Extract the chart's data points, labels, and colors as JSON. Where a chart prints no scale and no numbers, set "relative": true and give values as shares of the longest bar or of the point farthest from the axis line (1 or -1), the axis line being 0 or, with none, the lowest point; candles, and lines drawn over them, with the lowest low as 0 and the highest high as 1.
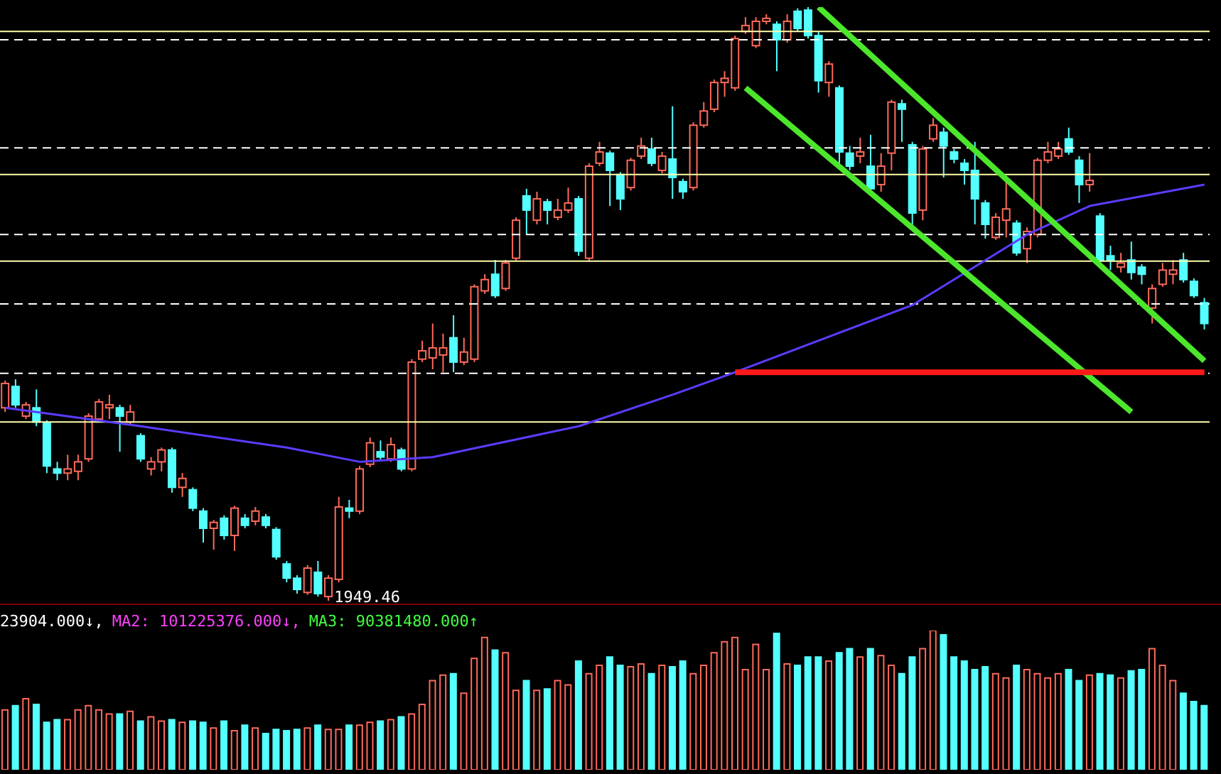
{
  "chart_data": [
    {
      "type": "candlestick",
      "relative": true,
      "colors": [
        "#ff6a5a",
        "#54ffff",
        "#ff6a5a",
        "#54ffff",
        "#54ffff",
        "#54ffff",
        "#ff6a5a",
        "#ff6a5a",
        "#ff6a5a",
        "#ff6a5a",
        "#ff6a5a",
        "#54ffff",
        "#ff6a5a",
        "#54ffff",
        "#ff6a5a",
        "#ff6a5a",
        "#54ffff",
        "#ff6a5a",
        "#54ffff",
        "#54ffff",
        "#ff6a5a",
        "#54ffff",
        "#ff6a5a",
        "#54ffff",
        "#ff6a5a",
        "#54ffff",
        "#54ffff",
        "#54ffff",
        "#54ffff",
        "#ff6a5a",
        "#54ffff",
        "#ff6a5a",
        "#ff6a5a",
        "#54ffff",
        "#ff6a5a",
        "#ff6a5a",
        "#54ffff",
        "#ff6a5a",
        "#54ffff",
        "#ff6a5a",
        "#ff6a5a",
        "#ff6a5a",
        "#ff6a5a",
        "#54ffff",
        "#ff6a5a",
        "#ff6a5a",
        "#ff6a5a",
        "#54ffff",
        "#ff6a5a",
        "#ff6a5a",
        "#54ffff",
        "#ff6a5a",
        "#54ffff",
        "#ff6a5a",
        "#ff6a5a",
        "#54ffff",
        "#ff6a5a",
        "#ff6a5a",
        "#54ffff",
        "#54ffff",
        "#ff6a5a",
        "#ff6a5a",
        "#54ffff",
        "#ff6a5a",
        "#54ffff",
        "#54ffff",
        "#ff6a5a",
        "#ff6a5a",
        "#ff6a5a",
        "#ff6a5a",
        "#ff6a5a",
        "#ff6a5a",
        "#ff6a5a",
        "#ff6a5a",
        "#54ffff",
        "#ff6a5a",
        "#54ffff",
        "#54ffff",
        "#54ffff",
        "#ff6a5a",
        "#54ffff",
        "#54ffff",
        "#ff6a5a",
        "#54ffff",
        "#ff6a5a",
        "#ff6a5a",
        "#54ffff",
        "#54ffff",
        "#ff6a5a",
        "#ff6a5a",
        "#54ffff",
        "#54ffff",
        "#54ffff",
        "#54ffff",
        "#54ffff",
        "#ff6a5a",
        "#ff6a5a",
        "#54ffff",
        "#ff6a5a",
        "#ff6a5a",
        "#ff6a5a",
        "#ff6a5a",
        "#54ffff",
        "#54ffff",
        "#ff6a5a",
        "#54ffff",
        "#54ffff",
        "#ff6a5a",
        "#54ffff",
        "#54ffff",
        "#ff6a5a",
        "#ff6a5a",
        "#ff6a5a",
        "#54ffff",
        "#54ffff",
        "#54ffff"
      ],
      "categories": [
        null,
        null,
        null,
        null,
        null,
        null,
        null,
        null,
        null,
        null,
        null,
        null,
        null,
        null,
        null,
        null,
        null,
        null,
        null,
        null,
        null,
        null,
        null,
        null,
        null,
        null,
        null,
        null,
        null,
        null,
        null,
        null,
        null,
        null,
        null,
        null,
        null,
        null,
        null,
        null,
        null,
        null,
        null,
        null,
        null,
        null,
        null,
        null,
        null,
        null,
        null,
        null,
        null,
        null,
        null,
        null,
        null,
        null,
        null,
        null,
        null,
        null,
        null,
        null,
        null,
        null,
        null,
        null,
        null,
        null,
        null,
        null,
        null,
        null,
        null,
        null,
        null,
        null,
        null,
        null,
        null,
        null,
        null,
        null,
        null,
        null,
        null,
        null,
        null,
        null,
        null,
        null,
        null,
        null,
        null,
        null,
        null,
        null,
        null,
        null,
        null,
        null,
        null,
        null,
        null,
        null,
        null,
        null,
        null,
        null,
        null,
        null,
        null,
        null,
        null,
        null
      ],
      "ohlc": [
        [
          0.325,
          0.371,
          0.318,
          0.366
        ],
        [
          0.361,
          0.373,
          0.325,
          0.33
        ],
        [
          0.311,
          0.335,
          0.306,
          0.33
        ],
        [
          0.325,
          0.356,
          0.294,
          0.301
        ],
        [
          0.299,
          0.304,
          0.215,
          0.227
        ],
        [
          0.222,
          0.234,
          0.203,
          0.215
        ],
        [
          0.215,
          0.246,
          0.203,
          0.222
        ],
        [
          0.218,
          0.246,
          0.203,
          0.234
        ],
        [
          0.239,
          0.316,
          0.234,
          0.311
        ],
        [
          0.306,
          0.34,
          0.301,
          0.335
        ],
        [
          0.325,
          0.347,
          0.306,
          0.33
        ],
        [
          0.325,
          0.33,
          0.251,
          0.311
        ],
        [
          0.301,
          0.33,
          0.297,
          0.318
        ],
        [
          0.278,
          0.282,
          0.234,
          0.239
        ],
        [
          0.222,
          0.242,
          0.211,
          0.234
        ],
        [
          0.234,
          0.258,
          0.218,
          0.254
        ],
        [
          0.254,
          0.258,
          0.182,
          0.191
        ],
        [
          0.191,
          0.215,
          0.175,
          0.206
        ],
        [
          0.187,
          0.191,
          0.151,
          0.156
        ],
        [
          0.151,
          0.156,
          0.098,
          0.122
        ],
        [
          0.122,
          0.136,
          0.086,
          0.132
        ],
        [
          0.139,
          0.144,
          0.103,
          0.11
        ],
        [
          0.11,
          0.16,
          0.084,
          0.156
        ],
        [
          0.139,
          0.146,
          0.122,
          0.127
        ],
        [
          0.134,
          0.158,
          0.127,
          0.151
        ],
        [
          0.141,
          0.146,
          0.122,
          0.127
        ],
        [
          0.12,
          0.124,
          0.069,
          0.074
        ],
        [
          0.062,
          0.067,
          0.031,
          0.038
        ],
        [
          0.038,
          0.043,
          0.012,
          0.019
        ],
        [
          0.014,
          0.06,
          0.01,
          0.055
        ],
        [
          0.048,
          0.067,
          0.007,
          0.012
        ],
        [
          0.007,
          0.043,
          0,
          0.038
        ],
        [
          0.036,
          0.175,
          0.031,
          0.158
        ],
        [
          0.156,
          0.17,
          0.139,
          0.151
        ],
        [
          0.151,
          0.227,
          0.146,
          0.222
        ],
        [
          0.23,
          0.275,
          0.225,
          0.266
        ],
        [
          0.251,
          0.27,
          0.237,
          0.242
        ],
        [
          0.239,
          0.275,
          0.234,
          0.263
        ],
        [
          0.254,
          0.258,
          0.218,
          0.222
        ],
        [
          0.222,
          0.407,
          0.218,
          0.402
        ],
        [
          0.407,
          0.438,
          0.402,
          0.421
        ],
        [
          0.409,
          0.467,
          0.39,
          0.426
        ],
        [
          0.414,
          0.45,
          0.385,
          0.426
        ],
        [
          0.443,
          0.481,
          0.385,
          0.402
        ],
        [
          0.402,
          0.443,
          0.397,
          0.419
        ],
        [
          0.407,
          0.533,
          0.402,
          0.529
        ],
        [
          0.522,
          0.55,
          0.517,
          0.541
        ],
        [
          0.55,
          0.574,
          0.51,
          0.514
        ],
        [
          0.526,
          0.574,
          0.522,
          0.569
        ],
        [
          0.577,
          0.646,
          0.572,
          0.641
        ],
        [
          0.682,
          0.694,
          0.617,
          0.658
        ],
        [
          0.641,
          0.689,
          0.634,
          0.677
        ],
        [
          0.672,
          0.677,
          0.634,
          0.658
        ],
        [
          0.646,
          0.677,
          0.641,
          0.658
        ],
        [
          0.658,
          0.696,
          0.653,
          0.67
        ],
        [
          0.677,
          0.682,
          0.581,
          0.589
        ],
        [
          0.577,
          0.737,
          0.572,
          0.732
        ],
        [
          0.737,
          0.773,
          0.732,
          0.756
        ],
        [
          0.754,
          0.758,
          0.665,
          0.725
        ],
        [
          0.718,
          0.722,
          0.658,
          0.677
        ],
        [
          0.696,
          0.746,
          0.691,
          0.742
        ],
        [
          0.749,
          0.78,
          0.744,
          0.766
        ],
        [
          0.761,
          0.78,
          0.732,
          0.737
        ],
        [
          0.725,
          0.756,
          0.72,
          0.749
        ],
        [
          0.744,
          0.833,
          0.677,
          0.713
        ],
        [
          0.706,
          0.711,
          0.677,
          0.689
        ],
        [
          0.696,
          0.806,
          0.691,
          0.801
        ],
        [
          0.801,
          0.84,
          0.797,
          0.825
        ],
        [
          0.828,
          0.878,
          0.823,
          0.873
        ],
        [
          0.873,
          0.892,
          0.849,
          0.88
        ],
        [
          0.864,
          0.952,
          0.859,
          0.947
        ],
        [
          0.959,
          0.983,
          0.955,
          0.969
        ],
        [
          0.935,
          0.983,
          0.931,
          0.976
        ],
        [
          0.976,
          0.988,
          0.971,
          0.981
        ],
        [
          0.971,
          0.976,
          0.892,
          0.945
        ],
        [
          0.945,
          0.988,
          0.94,
          0.976
        ],
        [
          0.993,
          0.998,
          0.959,
          0.964
        ],
        [
          0.995,
          1,
          0.947,
          0.952
        ],
        [
          0.952,
          0.959,
          0.856,
          0.876
        ],
        [
          0.873,
          0.909,
          0.849,
          0.904
        ],
        [
          0.864,
          0.868,
          0.737,
          0.756
        ],
        [
          0.754,
          0.766,
          0.725,
          0.732
        ],
        [
          0.749,
          0.78,
          0.737,
          0.756
        ],
        [
          0.732,
          0.785,
          0.689,
          0.694
        ],
        [
          0.701,
          0.754,
          0.689,
          0.732
        ],
        [
          0.754,
          0.844,
          0.725,
          0.84
        ],
        [
          0.837,
          0.844,
          0.773,
          0.828
        ],
        [
          0.768,
          0.773,
          0.629,
          0.653
        ],
        [
          0.658,
          0.766,
          0.641,
          0.761
        ],
        [
          0.778,
          0.813,
          0.773,
          0.801
        ],
        [
          0.789,
          0.797,
          0.713,
          0.766
        ],
        [
          0.756,
          0.761,
          0.737,
          0.744
        ],
        [
          0.737,
          0.744,
          0.701,
          0.725
        ],
        [
          0.725,
          0.773,
          0.634,
          0.677
        ],
        [
          0.67,
          0.675,
          0.61,
          0.634
        ],
        [
          0.612,
          0.653,
          0.608,
          0.646
        ],
        [
          0.641,
          0.708,
          0.612,
          0.66
        ],
        [
          0.636,
          0.641,
          0.581,
          0.586
        ],
        [
          0.593,
          0.629,
          0.569,
          0.622
        ],
        [
          0.617,
          0.746,
          0.612,
          0.742
        ],
        [
          0.742,
          0.773,
          0.737,
          0.756
        ],
        [
          0.749,
          0.773,
          0.744,
          0.761
        ],
        [
          0.778,
          0.797,
          0.751,
          0.756
        ],
        [
          0.742,
          0.749,
          0.67,
          0.701
        ],
        [
          0.701,
          0.754,
          0.689,
          0.708
        ],
        [
          0.648,
          0.653,
          0.569,
          0.574
        ],
        [
          0.581,
          0.598,
          0.557,
          0.574
        ],
        [
          0.562,
          0.586,
          0.553,
          0.569
        ],
        [
          0.574,
          0.605,
          0.541,
          0.553
        ],
        [
          0.562,
          0.567,
          0.533,
          0.55
        ],
        [
          0.493,
          0.533,
          0.467,
          0.526
        ],
        [
          0.533,
          0.569,
          0.529,
          0.557
        ],
        [
          0.55,
          0.574,
          0.533,
          0.557
        ],
        [
          0.574,
          0.586,
          0.536,
          0.541
        ],
        [
          0.538,
          0.543,
          0.51,
          0.514
        ],
        [
          0.502,
          0.51,
          0.457,
          0.467
        ]
      ],
      "series": [
        {
          "type": "line",
          "color": "#5a3cff",
          "values": [
            0.325,
            null,
            null,
            null,
            null,
            null,
            null,
            null,
            null,
            null,
            null,
            null,
            null,
            0.294,
            null,
            null,
            null,
            null,
            null,
            null,
            null,
            null,
            null,
            null,
            null,
            null,
            null,
            0.258,
            null,
            null,
            null,
            null,
            null,
            null,
            0.234,
            null,
            null,
            null,
            null,
            null,
            null,
            0.242,
            null,
            null,
            null,
            null,
            null,
            null,
            null,
            null,
            null,
            null,
            null,
            null,
            null,
            0.294,
            null,
            null,
            null,
            null,
            null,
            null,
            null,
            null,
            0.347,
            null,
            null,
            null,
            null,
            null,
            0.385,
            null,
            null,
            null,
            null,
            null,
            null,
            null,
            null,
            null,
            null,
            null,
            null,
            null,
            null,
            null,
            null,
            0.498,
            null,
            null,
            null,
            null,
            null,
            null,
            null,
            null,
            null,
            null,
            0.617,
            null,
            null,
            null,
            null,
            null,
            0.665,
            null,
            null,
            null,
            null,
            null,
            null,
            null,
            null,
            null,
            null,
            0.701
          ]
        },
        {
          "type": "line",
          "color": "#4ce62c",
          "values": [
            null,
            null,
            null,
            null,
            null,
            null,
            null,
            null,
            null,
            null,
            null,
            null,
            null,
            null,
            null,
            null,
            null,
            null,
            null,
            null,
            null,
            null,
            null,
            null,
            null,
            null,
            null,
            null,
            null,
            null,
            null,
            null,
            null,
            null,
            null,
            null,
            null,
            null,
            null,
            null,
            null,
            null,
            null,
            null,
            null,
            null,
            null,
            null,
            null,
            null,
            null,
            null,
            null,
            null,
            null,
            null,
            null,
            null,
            null,
            null,
            null,
            null,
            null,
            null,
            null,
            null,
            null,
            null,
            null,
            null,
            null,
            null,
            null,
            null,
            null,
            null,
            null,
            null,
            1,
            null,
            null,
            null,
            null,
            null,
            null,
            null,
            null,
            null,
            null,
            null,
            null,
            null,
            null,
            null,
            null,
            null,
            null,
            null,
            null,
            null,
            null,
            null,
            null,
            null,
            null,
            null,
            null,
            null,
            null,
            null,
            null,
            null,
            null,
            null,
            null,
            0.404
          ]
        },
        {
          "type": "line",
          "color": "#4ce62c",
          "values": [
            null,
            null,
            null,
            null,
            null,
            null,
            null,
            null,
            null,
            null,
            null,
            null,
            null,
            null,
            null,
            null,
            null,
            null,
            null,
            null,
            null,
            null,
            null,
            null,
            null,
            null,
            null,
            null,
            null,
            null,
            null,
            null,
            null,
            null,
            null,
            null,
            null,
            null,
            null,
            null,
            null,
            null,
            null,
            null,
            null,
            null,
            null,
            null,
            null,
            null,
            null,
            null,
            null,
            null,
            null,
            null,
            null,
            null,
            null,
            null,
            null,
            null,
            null,
            null,
            null,
            null,
            null,
            null,
            null,
            null,
            null,
            0.864,
            null,
            null,
            null,
            null,
            null,
            null,
            null,
            null,
            null,
            null,
            null,
            null,
            null,
            null,
            null,
            null,
            null,
            null,
            null,
            null,
            null,
            null,
            null,
            null,
            null,
            null,
            null,
            null,
            null,
            null,
            null,
            null,
            null,
            null,
            null,
            null,
            0.318,
            null,
            null,
            null,
            null,
            null,
            null,
            null
          ]
        },
        {
          "type": "line",
          "color": "#ff1a1a",
          "values": [
            null,
            null,
            null,
            null,
            null,
            null,
            null,
            null,
            null,
            null,
            null,
            null,
            null,
            null,
            null,
            null,
            null,
            null,
            null,
            null,
            null,
            null,
            null,
            null,
            null,
            null,
            null,
            null,
            null,
            null,
            null,
            null,
            null,
            null,
            null,
            null,
            null,
            null,
            null,
            null,
            null,
            null,
            null,
            null,
            null,
            null,
            null,
            null,
            null,
            null,
            null,
            null,
            null,
            null,
            null,
            null,
            null,
            null,
            null,
            null,
            null,
            null,
            null,
            null,
            null,
            null,
            null,
            null,
            null,
            null,
            0.385,
            null,
            null,
            null,
            null,
            null,
            null,
            null,
            null,
            null,
            null,
            null,
            null,
            null,
            null,
            null,
            null,
            null,
            null,
            null,
            null,
            null,
            null,
            null,
            null,
            null,
            null,
            null,
            null,
            null,
            null,
            null,
            null,
            null,
            null,
            null,
            null,
            null,
            null,
            null,
            null,
            null,
            null,
            null,
            null,
            0.385
          ]
        }
      ],
      "ref_lines": [
        {
          "axis": "y",
          "value": 0.945,
          "color": "#ffffff",
          "line_style": "dashed"
        },
        {
          "axis": "y",
          "value": 0.763,
          "color": "#ffffff",
          "line_style": "dashed"
        },
        {
          "axis": "y",
          "value": 0.617,
          "color": "#ffffff",
          "line_style": "dashed"
        },
        {
          "axis": "y",
          "value": 0.5,
          "color": "#ffffff",
          "line_style": "dashed"
        },
        {
          "axis": "y",
          "value": 0.383,
          "color": "#ffffff",
          "line_style": "dashed"
        },
        {
          "axis": "y",
          "value": 0.959,
          "color": "#ffffaa",
          "line_style": "solid"
        },
        {
          "axis": "y",
          "value": 0.718,
          "color": "#ffffaa",
          "line_style": "solid"
        },
        {
          "axis": "y",
          "value": 0.572,
          "color": "#ffffaa",
          "line_style": "solid"
        },
        {
          "axis": "y",
          "value": 0.301,
          "color": "#ffffaa",
          "line_style": "solid"
        }
      ],
      "annotations": [
        "1949.46"
      ]
    },
    {
      "type": "bar",
      "relative": true,
      "colors": [
        "#ff6a5a",
        "#54ffff",
        "#ff6a5a",
        "#54ffff",
        "#54ffff",
        "#54ffff",
        "#ff6a5a",
        "#ff6a5a",
        "#ff6a5a",
        "#ff6a5a",
        "#ff6a5a",
        "#54ffff",
        "#ff6a5a",
        "#54ffff",
        "#ff6a5a",
        "#ff6a5a",
        "#54ffff",
        "#ff6a5a",
        "#54ffff",
        "#54ffff",
        "#ff6a5a",
        "#54ffff",
        "#ff6a5a",
        "#54ffff",
        "#ff6a5a",
        "#54ffff",
        "#54ffff",
        "#54ffff",
        "#54ffff",
        "#ff6a5a",
        "#54ffff",
        "#ff6a5a",
        "#ff6a5a",
        "#54ffff",
        "#ff6a5a",
        "#ff6a5a",
        "#54ffff",
        "#ff6a5a",
        "#54ffff",
        "#ff6a5a",
        "#ff6a5a",
        "#ff6a5a",
        "#ff6a5a",
        "#54ffff",
        "#ff6a5a",
        "#ff6a5a",
        "#ff6a5a",
        "#54ffff",
        "#ff6a5a",
        "#ff6a5a",
        "#54ffff",
        "#ff6a5a",
        "#54ffff",
        "#ff6a5a",
        "#ff6a5a",
        "#54ffff",
        "#ff6a5a",
        "#ff6a5a",
        "#54ffff",
        "#54ffff",
        "#ff6a5a",
        "#ff6a5a",
        "#54ffff",
        "#ff6a5a",
        "#54ffff",
        "#54ffff",
        "#ff6a5a",
        "#ff6a5a",
        "#ff6a5a",
        "#ff6a5a",
        "#ff6a5a",
        "#ff6a5a",
        "#ff6a5a",
        "#ff6a5a",
        "#54ffff",
        "#ff6a5a",
        "#54ffff",
        "#54ffff",
        "#54ffff",
        "#ff6a5a",
        "#54ffff",
        "#54ffff",
        "#ff6a5a",
        "#54ffff",
        "#ff6a5a",
        "#ff6a5a",
        "#54ffff",
        "#54ffff",
        "#ff6a5a",
        "#ff6a5a",
        "#54ffff",
        "#54ffff",
        "#54ffff",
        "#54ffff",
        "#54ffff",
        "#ff6a5a",
        "#ff6a5a",
        "#54ffff",
        "#ff6a5a",
        "#ff6a5a",
        "#ff6a5a",
        "#ff6a5a",
        "#54ffff",
        "#54ffff",
        "#ff6a5a",
        "#54ffff",
        "#54ffff",
        "#ff6a5a",
        "#54ffff",
        "#54ffff",
        "#ff6a5a",
        "#ff6a5a",
        "#ff6a5a",
        "#54ffff",
        "#54ffff",
        "#54ffff"
      ],
      "categories": [
        null,
        null,
        null,
        null,
        null,
        null,
        null,
        null,
        null,
        null,
        null,
        null,
        null,
        null,
        null,
        null,
        null,
        null,
        null,
        null,
        null,
        null,
        null,
        null,
        null,
        null,
        null,
        null,
        null,
        null,
        null,
        null,
        null,
        null,
        null,
        null,
        null,
        null,
        null,
        null,
        null,
        null,
        null,
        null,
        null,
        null,
        null,
        null,
        null,
        null,
        null,
        null,
        null,
        null,
        null,
        null,
        null,
        null,
        null,
        null,
        null,
        null,
        null,
        null,
        null,
        null,
        null,
        null,
        null,
        null,
        null,
        null,
        null,
        null,
        null,
        null,
        null,
        null,
        null,
        null,
        null,
        null,
        null,
        null,
        null,
        null,
        null,
        null,
        null,
        null,
        null,
        null,
        null,
        null,
        null,
        null,
        null,
        null,
        null,
        null,
        null,
        null,
        null,
        null,
        null,
        null,
        null,
        null,
        null,
        null,
        null,
        null,
        null,
        null,
        null,
        null
      ],
      "values": [
        0.43,
        0.46,
        0.51,
        0.47,
        0.34,
        0.36,
        0.36,
        0.43,
        0.46,
        0.43,
        0.4,
        0.4,
        0.42,
        0.35,
        0.38,
        0.35,
        0.36,
        0.34,
        0.35,
        0.34,
        0.3,
        0.35,
        0.28,
        0.32,
        0.3,
        0.26,
        0.29,
        0.28,
        0.29,
        0.3,
        0.32,
        0.29,
        0.29,
        0.32,
        0.32,
        0.34,
        0.35,
        0.36,
        0.38,
        0.4,
        0.47,
        0.64,
        0.68,
        0.69,
        0.55,
        0.8,
        0.95,
        0.86,
        0.84,
        0.57,
        0.64,
        0.57,
        0.58,
        0.64,
        0.61,
        0.78,
        0.69,
        0.75,
        0.81,
        0.75,
        0.74,
        0.76,
        0.69,
        0.75,
        0.74,
        0.78,
        0.69,
        0.75,
        0.84,
        0.92,
        0.95,
        0.72,
        0.9,
        0.72,
        0.98,
        0.76,
        0.75,
        0.81,
        0.81,
        0.78,
        0.84,
        0.87,
        0.81,
        0.87,
        0.82,
        0.75,
        0.69,
        0.81,
        0.87,
        1,
        0.97,
        0.81,
        0.78,
        0.72,
        0.74,
        0.69,
        0.66,
        0.75,
        0.72,
        0.69,
        0.66,
        0.69,
        0.72,
        0.64,
        0.68,
        0.69,
        0.68,
        0.66,
        0.71,
        0.72,
        0.87,
        0.75,
        0.64,
        0.55,
        0.49,
        0.46
      ],
      "annotations": [
        "23904.000↓,",
        "MA2: 101225376.000↓,",
        "MA3: 90381480.000↑"
      ]
    }
  ]
}
